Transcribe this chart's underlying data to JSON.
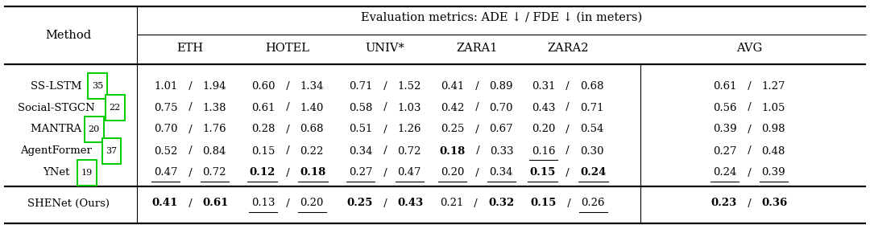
{
  "title": "Evaluation metrics: ADE ↓ / FDE ↓ (in meters)",
  "col_headers": [
    "ETH",
    "HOTEL",
    "UNIV*",
    "ZARA1",
    "ZARA2",
    "AVG"
  ],
  "rows": [
    {
      "method": "SS-LSTM ",
      "cite": "35",
      "cells": [
        {
          "text": "1.01 / 1.94",
          "bold_left": false,
          "bold_right": false,
          "ul_left": false,
          "ul_right": false
        },
        {
          "text": "0.60 / 1.34",
          "bold_left": false,
          "bold_right": false,
          "ul_left": false,
          "ul_right": false
        },
        {
          "text": "0.71 / 1.52",
          "bold_left": false,
          "bold_right": false,
          "ul_left": false,
          "ul_right": false
        },
        {
          "text": "0.41 / 0.89",
          "bold_left": false,
          "bold_right": false,
          "ul_left": false,
          "ul_right": false
        },
        {
          "text": "0.31 / 0.68",
          "bold_left": false,
          "bold_right": false,
          "ul_left": false,
          "ul_right": false
        },
        {
          "text": "0.61 / 1.27",
          "bold_left": false,
          "bold_right": false,
          "ul_left": false,
          "ul_right": false
        }
      ]
    },
    {
      "method": "Social-STGCN ",
      "cite": "22",
      "cells": [
        {
          "text": "0.75 / 1.38",
          "bold_left": false,
          "bold_right": false,
          "ul_left": false,
          "ul_right": false
        },
        {
          "text": "0.61 / 1.40",
          "bold_left": false,
          "bold_right": false,
          "ul_left": false,
          "ul_right": false
        },
        {
          "text": "0.58 / 1.03",
          "bold_left": false,
          "bold_right": false,
          "ul_left": false,
          "ul_right": false
        },
        {
          "text": "0.42 / 0.70",
          "bold_left": false,
          "bold_right": false,
          "ul_left": false,
          "ul_right": false
        },
        {
          "text": "0.43 / 0.71",
          "bold_left": false,
          "bold_right": false,
          "ul_left": false,
          "ul_right": false
        },
        {
          "text": "0.56 / 1.05",
          "bold_left": false,
          "bold_right": false,
          "ul_left": false,
          "ul_right": false
        }
      ]
    },
    {
      "method": "MANTRA ",
      "cite": "20",
      "cells": [
        {
          "text": "0.70 / 1.76",
          "bold_left": false,
          "bold_right": false,
          "ul_left": false,
          "ul_right": false
        },
        {
          "text": "0.28 / 0.68",
          "bold_left": false,
          "bold_right": false,
          "ul_left": false,
          "ul_right": false
        },
        {
          "text": "0.51 / 1.26",
          "bold_left": false,
          "bold_right": false,
          "ul_left": false,
          "ul_right": false
        },
        {
          "text": "0.25 / 0.67",
          "bold_left": false,
          "bold_right": false,
          "ul_left": false,
          "ul_right": false
        },
        {
          "text": "0.20 / 0.54",
          "bold_left": false,
          "bold_right": false,
          "ul_left": false,
          "ul_right": false
        },
        {
          "text": "0.39 / 0.98",
          "bold_left": false,
          "bold_right": false,
          "ul_left": false,
          "ul_right": false
        }
      ]
    },
    {
      "method": "AgentFormer ",
      "cite": "37",
      "cells": [
        {
          "text": "0.52 / 0.84",
          "bold_left": false,
          "bold_right": false,
          "ul_left": false,
          "ul_right": false
        },
        {
          "text": "0.15 / 0.22",
          "bold_left": false,
          "bold_right": false,
          "ul_left": false,
          "ul_right": false
        },
        {
          "text": "0.34 / 0.72",
          "bold_left": false,
          "bold_right": false,
          "ul_left": false,
          "ul_right": false
        },
        {
          "text": "0.18 / 0.33",
          "bold_left": true,
          "bold_right": false,
          "ul_left": false,
          "ul_right": false
        },
        {
          "text": "0.16 / 0.30",
          "bold_left": false,
          "bold_right": false,
          "ul_left": false,
          "ul_right": false
        },
        {
          "text": "0.27 / 0.48",
          "bold_left": false,
          "bold_right": false,
          "ul_left": false,
          "ul_right": false
        }
      ]
    },
    {
      "method": "YNet ",
      "cite": "19",
      "cells": [
        {
          "text": "0.47 / 0.72",
          "bold_left": false,
          "bold_right": false,
          "ul_left": true,
          "ul_right": true
        },
        {
          "text": "0.12 / 0.18",
          "bold_left": true,
          "bold_right": true,
          "ul_left": true,
          "ul_right": true
        },
        {
          "text": "0.27 / 0.47",
          "bold_left": false,
          "bold_right": false,
          "ul_left": true,
          "ul_right": true
        },
        {
          "text": "0.20 / 0.34",
          "bold_left": false,
          "bold_right": false,
          "ul_left": true,
          "ul_right": true
        },
        {
          "text": "0.15 / 0.24",
          "bold_left": true,
          "bold_right": true,
          "ul_left": true,
          "ul_right": true
        },
        {
          "text": "0.24 / 0.39",
          "bold_left": false,
          "bold_right": false,
          "ul_left": true,
          "ul_right": true
        }
      ]
    }
  ],
  "ours": {
    "method": "SHENet (Ours)",
    "cite": "",
    "cells": [
      {
        "text": "0.41 / 0.61",
        "bold_left": true,
        "bold_right": true,
        "ul_left": false,
        "ul_right": false
      },
      {
        "text": "0.13 / 0.20",
        "bold_left": false,
        "bold_right": false,
        "ul_left": true,
        "ul_right": true
      },
      {
        "text": "0.25 / 0.43",
        "bold_left": true,
        "bold_right": true,
        "ul_left": false,
        "ul_right": false
      },
      {
        "text": "0.21 / 0.32",
        "bold_left": false,
        "bold_right": true,
        "ul_left": false,
        "ul_right": false
      },
      {
        "text": "0.15 / 0.26",
        "bold_left": true,
        "bold_right": false,
        "ul_left": false,
        "ul_right": true
      },
      {
        "text": "0.23 / 0.36",
        "bold_left": true,
        "bold_right": true,
        "ul_left": false,
        "ul_right": false
      }
    ]
  },
  "agentformer_zara2_underline_left": true,
  "bg_color": "#ffffff",
  "cite_box_color": "#00cc00"
}
